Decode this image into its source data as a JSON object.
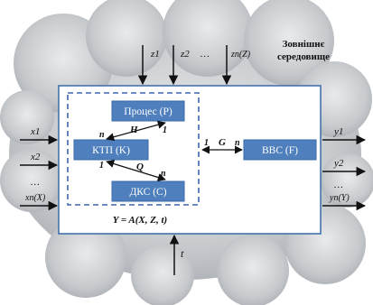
{
  "environment": {
    "line1": "Зовнішнє",
    "line2": "середовище"
  },
  "top_inputs": {
    "z1": "z1",
    "z2": "z2",
    "ellipsis": "…",
    "zn": "zn(Z)"
  },
  "left_inputs": {
    "x1": "x1",
    "x2": "x2",
    "ellipsis": "…",
    "xn": "xn(X)"
  },
  "right_outputs": {
    "y1": "y1",
    "y2": "y2",
    "ellipsis": "…",
    "yn": "yn(Y)"
  },
  "bottom_input": {
    "t": "t"
  },
  "blocks": {
    "process": "Процес (P)",
    "ktp": "КТП (K)",
    "dks": "ДКС (C)",
    "vvs": "ВВС (F)"
  },
  "links": {
    "H": "H",
    "H_n": "n",
    "H_1": "1",
    "Q": "Q",
    "Q_1": "1",
    "Q_n": "n",
    "G": "G",
    "G_1": "1",
    "G_n": "n"
  },
  "equation": "Y = A(X, Z, t)",
  "colors": {
    "block_fill": "#4f7fbd",
    "block_border": "#3a6aa8",
    "dashed": "#3f67b0",
    "cloud": "#c9ccd0"
  }
}
